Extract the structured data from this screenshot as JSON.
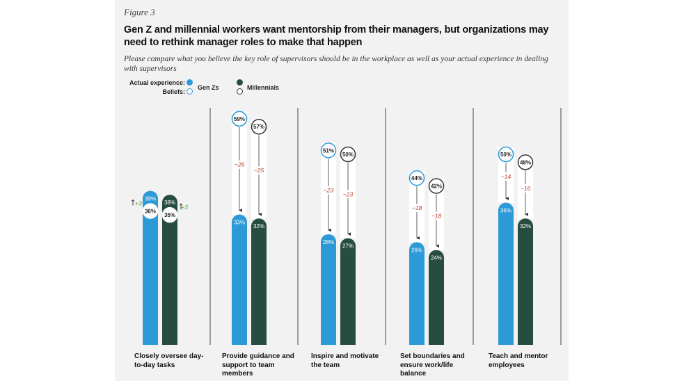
{
  "figure_label": "Figure 3",
  "title": "Gen Z and millennial workers want mentorship from their managers, but organizations may need to rethink manager roles to make that happen",
  "subtitle": "Please compare what you believe the key role of supervisors should be in the workplace as well as your actual experience in dealing with supervisors",
  "legend": {
    "actual_label": "Actual experience:",
    "beliefs_label": "Beliefs:",
    "genz": "Gen Zs",
    "millennials": "Millennials"
  },
  "colors": {
    "genz": "#2b9ad6",
    "millennials": "#264d3f",
    "gap_text": "#c0392b",
    "positive_text": "#5a9a3a",
    "panel": "#f2f2f2"
  },
  "chart_data": {
    "type": "bar",
    "ylim": [
      0,
      70
    ],
    "categories": [
      "Closely oversee day-to-day tasks",
      "Provide guidance and support to team members",
      "Inspire and motivate the team",
      "Set boundaries and ensure work/life balance",
      "Teach and mentor employees"
    ],
    "series": [
      {
        "name": "Gen Zs",
        "actual": [
          39,
          33,
          28,
          26,
          36
        ],
        "beliefs": [
          36,
          59,
          51,
          44,
          50
        ],
        "actual_labels": [
          "39%",
          "33%",
          "28%",
          "26%",
          "36%"
        ],
        "belief_labels": [
          "36%",
          "59%",
          "51%",
          "44%",
          "50%"
        ],
        "gap_labels": [
          "+3",
          "−26",
          "−23",
          "−18",
          "−14"
        ]
      },
      {
        "name": "Millennials",
        "actual": [
          38,
          32,
          27,
          24,
          32
        ],
        "beliefs": [
          35,
          57,
          50,
          42,
          48
        ],
        "actual_labels": [
          "38%",
          "32%",
          "27%",
          "24%",
          "32%"
        ],
        "belief_labels": [
          "35%",
          "57%",
          "50%",
          "42%",
          "48%"
        ],
        "gap_labels": [
          "+3",
          "−25",
          "−23",
          "−18",
          "−16"
        ]
      }
    ]
  }
}
